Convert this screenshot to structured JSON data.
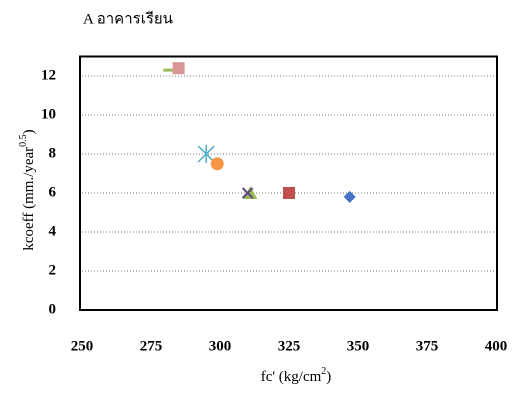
{
  "chart_data": {
    "type": "scatter",
    "title": "A อาคารเรียน",
    "xlabel": {
      "text": "fc' (kg/cm",
      "sup": "2",
      "end": ")"
    },
    "ylabel": {
      "text": "kcoeff (mm./year",
      "sup": "0.5",
      "end": ")"
    },
    "xlim": [
      250,
      400
    ],
    "xticks": [
      250,
      275,
      300,
      325,
      350,
      375,
      400
    ],
    "ylim": [
      0,
      13
    ],
    "yticks": [
      0,
      2,
      4,
      6,
      8,
      10,
      12
    ],
    "grid": true,
    "series": [
      {
        "marker": "diamond",
        "color": "#4472c4",
        "x": [
          347
        ],
        "values": [
          5.8
        ]
      },
      {
        "marker": "square",
        "color": "#c0504d",
        "x": [
          325
        ],
        "values": [
          6.0
        ]
      },
      {
        "marker": "triangle",
        "color": "#9bbb59",
        "x": [
          311
        ],
        "values": [
          6.0
        ]
      },
      {
        "marker": "x",
        "color": "#5f497a",
        "x": [
          310
        ],
        "values": [
          6.0
        ]
      },
      {
        "marker": "star",
        "color": "#4bacc6",
        "x": [
          295
        ],
        "values": [
          8.0
        ]
      },
      {
        "marker": "circle",
        "color": "#f79646",
        "x": [
          299
        ],
        "values": [
          7.5
        ]
      },
      {
        "marker": "dash",
        "color": "#9bbb59",
        "x": [
          282
        ],
        "values": [
          12.3
        ]
      },
      {
        "marker": "square",
        "color": "#d99694",
        "x": [
          285
        ],
        "values": [
          12.4
        ]
      }
    ]
  }
}
